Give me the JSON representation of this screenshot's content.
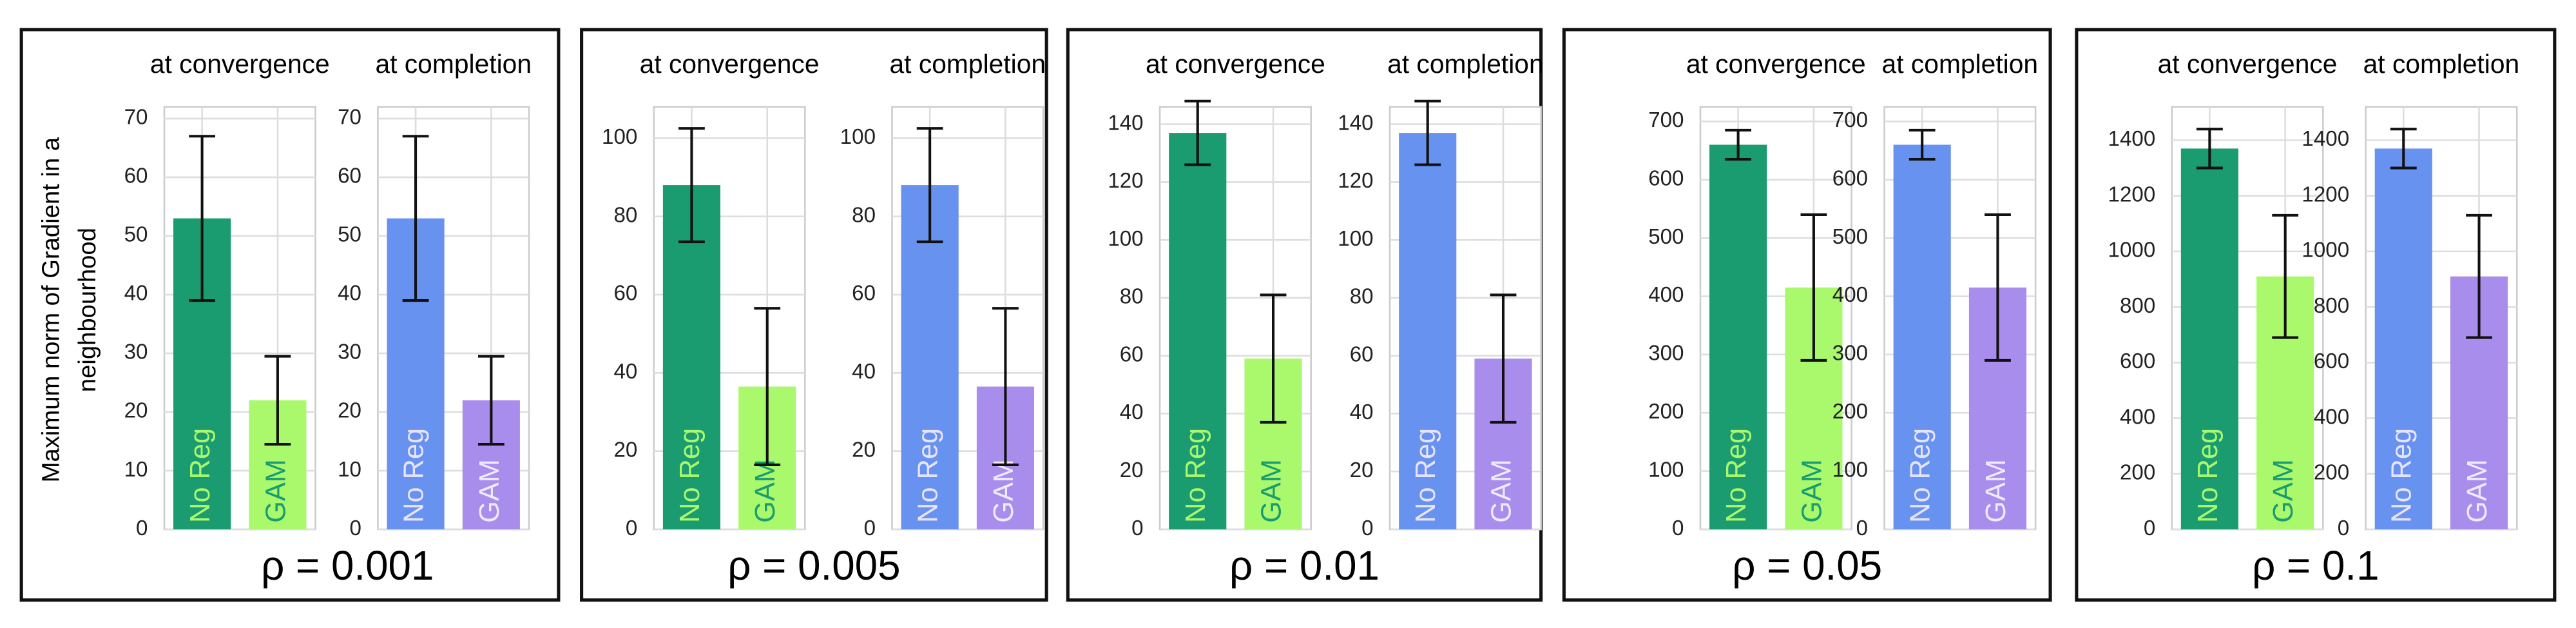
{
  "panels": [
    {
      "label": "ρ = 0.001"
    },
    {
      "label": "ρ = 0.005"
    },
    {
      "label": "ρ = 0.01"
    },
    {
      "label": "ρ = 0.05"
    },
    {
      "label": "ρ = 0.1"
    }
  ],
  "chart_data": [
    {
      "type": "bar",
      "title": "at convergence",
      "ylabel": [
        "Maximum norm of Gradient in a",
        "neighbourhood"
      ],
      "categories": [
        "No Reg",
        "GAM"
      ],
      "values": [
        53,
        22
      ],
      "errors": [
        14,
        7.5
      ],
      "colors": [
        "#1b9b70",
        "#aaf96c"
      ],
      "ylim": [
        0,
        72
      ],
      "yticks": [
        0,
        10,
        20,
        30,
        40,
        50,
        60,
        70
      ],
      "grid": true
    },
    {
      "type": "bar",
      "title": "at completion",
      "categories": [
        "No Reg",
        "GAM"
      ],
      "values": [
        53,
        22
      ],
      "errors": [
        14,
        7.5
      ],
      "colors": [
        "#6892f0",
        "#a98ded"
      ],
      "ylim": [
        0,
        72
      ],
      "yticks": [
        0,
        10,
        20,
        30,
        40,
        50,
        60,
        70
      ],
      "grid": true
    },
    {
      "type": "bar",
      "title": "at convergence",
      "categories": [
        "No Reg",
        "GAM"
      ],
      "values": [
        88,
        36.5
      ],
      "errors": [
        14.5,
        20
      ],
      "colors": [
        "#1b9b70",
        "#aaf96c"
      ],
      "ylim": [
        0,
        108
      ],
      "yticks": [
        0,
        20,
        40,
        60,
        80,
        100
      ],
      "grid": true
    },
    {
      "type": "bar",
      "title": "at completion",
      "categories": [
        "No Reg",
        "GAM"
      ],
      "values": [
        88,
        36.5
      ],
      "errors": [
        14.5,
        20
      ],
      "colors": [
        "#6892f0",
        "#a98ded"
      ],
      "ylim": [
        0,
        108
      ],
      "yticks": [
        0,
        20,
        40,
        60,
        80,
        100
      ],
      "grid": true
    },
    {
      "type": "bar",
      "title": "at convergence",
      "categories": [
        "No Reg",
        "GAM"
      ],
      "values": [
        137,
        59
      ],
      "errors": [
        11,
        22
      ],
      "colors": [
        "#1b9b70",
        "#aaf96c"
      ],
      "ylim": [
        0,
        146
      ],
      "yticks": [
        0,
        20,
        40,
        60,
        80,
        100,
        120,
        140
      ],
      "grid": true
    },
    {
      "type": "bar",
      "title": "at completion",
      "categories": [
        "No Reg",
        "GAM"
      ],
      "values": [
        137,
        59
      ],
      "errors": [
        11,
        22
      ],
      "colors": [
        "#6892f0",
        "#a98ded"
      ],
      "ylim": [
        0,
        146
      ],
      "yticks": [
        0,
        20,
        40,
        60,
        80,
        100,
        120,
        140
      ],
      "grid": true
    },
    {
      "type": "bar",
      "title": "at convergence",
      "categories": [
        "No Reg",
        "GAM"
      ],
      "values": [
        660,
        415
      ],
      "errors": [
        25,
        125
      ],
      "colors": [
        "#1b9b70",
        "#aaf96c"
      ],
      "ylim": [
        0,
        725
      ],
      "yticks": [
        0,
        100,
        200,
        300,
        400,
        500,
        600,
        700
      ],
      "grid": true
    },
    {
      "type": "bar",
      "title": "at completion",
      "categories": [
        "No Reg",
        "GAM"
      ],
      "values": [
        660,
        415
      ],
      "errors": [
        25,
        125
      ],
      "colors": [
        "#6892f0",
        "#a98ded"
      ],
      "ylim": [
        0,
        725
      ],
      "yticks": [
        0,
        100,
        200,
        300,
        400,
        500,
        600,
        700
      ],
      "grid": true
    },
    {
      "type": "bar",
      "title": "at convergence",
      "categories": [
        "No Reg",
        "GAM"
      ],
      "values": [
        1370,
        910
      ],
      "errors": [
        70,
        220
      ],
      "colors": [
        "#1b9b70",
        "#aaf96c"
      ],
      "ylim": [
        0,
        1520
      ],
      "yticks": [
        0,
        200,
        400,
        600,
        800,
        1000,
        1200,
        1400
      ],
      "grid": true
    },
    {
      "type": "bar",
      "title": "at completion",
      "categories": [
        "No Reg",
        "GAM"
      ],
      "values": [
        1370,
        910
      ],
      "errors": [
        70,
        220
      ],
      "colors": [
        "#6892f0",
        "#a98ded"
      ],
      "ylim": [
        0,
        1520
      ],
      "yticks": [
        0,
        200,
        400,
        600,
        800,
        1000,
        1200,
        1400
      ],
      "grid": true
    }
  ]
}
